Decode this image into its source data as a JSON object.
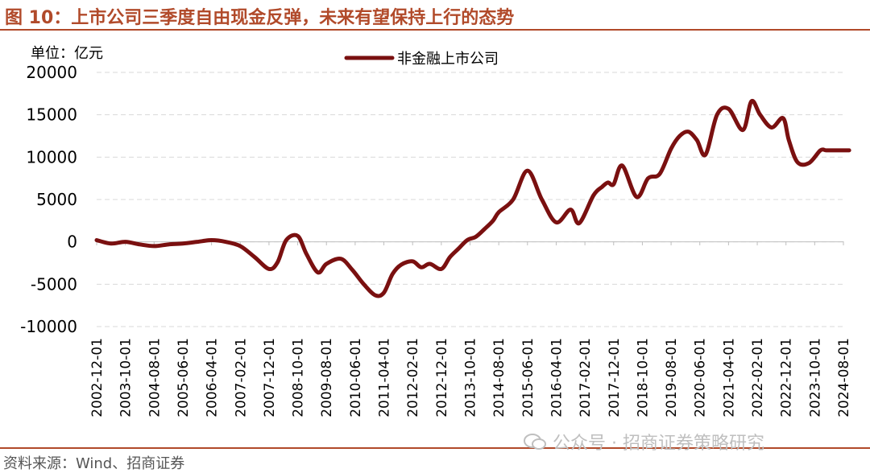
{
  "header": {
    "title": "图 10：上市公司三季度自由现金反弹，未来有望保持上行的态势"
  },
  "unit_label": "单位：亿元",
  "source": "资料来源：Wind、招商证券",
  "watermark": "公众号 · 招商证券策略研究",
  "colors": {
    "accent": "#b14a2a",
    "series": "#7a1010",
    "grid": "#d9d9d9"
  },
  "chart_data": {
    "type": "line",
    "title": "",
    "xlabel": "",
    "ylabel": "",
    "ylim": [
      -10000,
      20000
    ],
    "yticks": [
      -10000,
      -5000,
      0,
      5000,
      10000,
      15000,
      20000
    ],
    "grid": true,
    "legend_position": "top-center",
    "xticks": [
      "2002-12-01",
      "2003-10-01",
      "2004-08-01",
      "2005-06-01",
      "2006-04-01",
      "2007-02-01",
      "2007-12-01",
      "2008-10-01",
      "2009-08-01",
      "2010-06-01",
      "2011-04-01",
      "2012-02-01",
      "2012-12-01",
      "2013-10-01",
      "2014-08-01",
      "2015-06-01",
      "2016-04-01",
      "2017-02-01",
      "2017-12-01",
      "2018-10-01",
      "2019-08-01",
      "2020-06-01",
      "2021-04-01",
      "2022-02-01",
      "2022-12-01",
      "2023-10-01",
      "2024-08-01"
    ],
    "series": [
      {
        "name": "非金融上市公司",
        "color": "#7a1010",
        "x": [
          0,
          0.5,
          1,
          1.5,
          2,
          2.5,
          3,
          3.5,
          4,
          4.5,
          5,
          5.5,
          6,
          6.3,
          6.6,
          7,
          7.3,
          7.7,
          8,
          8.5,
          8.9,
          9.3,
          9.7,
          10,
          10.3,
          10.6,
          11,
          11.3,
          11.6,
          12,
          12.3,
          12.6,
          12.9,
          13.2,
          13.5,
          13.8,
          14,
          14.5,
          15,
          15.5,
          16,
          16.5,
          16.8,
          17.3,
          17.6,
          17.8,
          18,
          18.3,
          18.8,
          19.2,
          19.6,
          20,
          20.3,
          20.6,
          20.9,
          21.2,
          21.6,
          22,
          22.5,
          22.8,
          23.1,
          23.5,
          23.9,
          24.1,
          24.4,
          24.8,
          25.2,
          25.4,
          25.7,
          26,
          26.2
        ],
        "values": [
          200,
          -200,
          0,
          -300,
          -500,
          -300,
          -200,
          0,
          200,
          0,
          -500,
          -1800,
          -3200,
          -2400,
          200,
          700,
          -1400,
          -3600,
          -2600,
          -2000,
          -3300,
          -5000,
          -6300,
          -6000,
          -3800,
          -2700,
          -2300,
          -3000,
          -2600,
          -3200,
          -1800,
          -800,
          200,
          600,
          1500,
          2500,
          3500,
          5000,
          8400,
          5000,
          2300,
          3800,
          2200,
          5500,
          6500,
          7000,
          6800,
          9000,
          5300,
          7500,
          8000,
          11000,
          12500,
          13000,
          12000,
          10300,
          15000,
          15700,
          13200,
          16600,
          15000,
          13500,
          14600,
          12000,
          9400,
          9300,
          10800,
          10800,
          10800,
          10800,
          10800
        ]
      }
    ]
  }
}
